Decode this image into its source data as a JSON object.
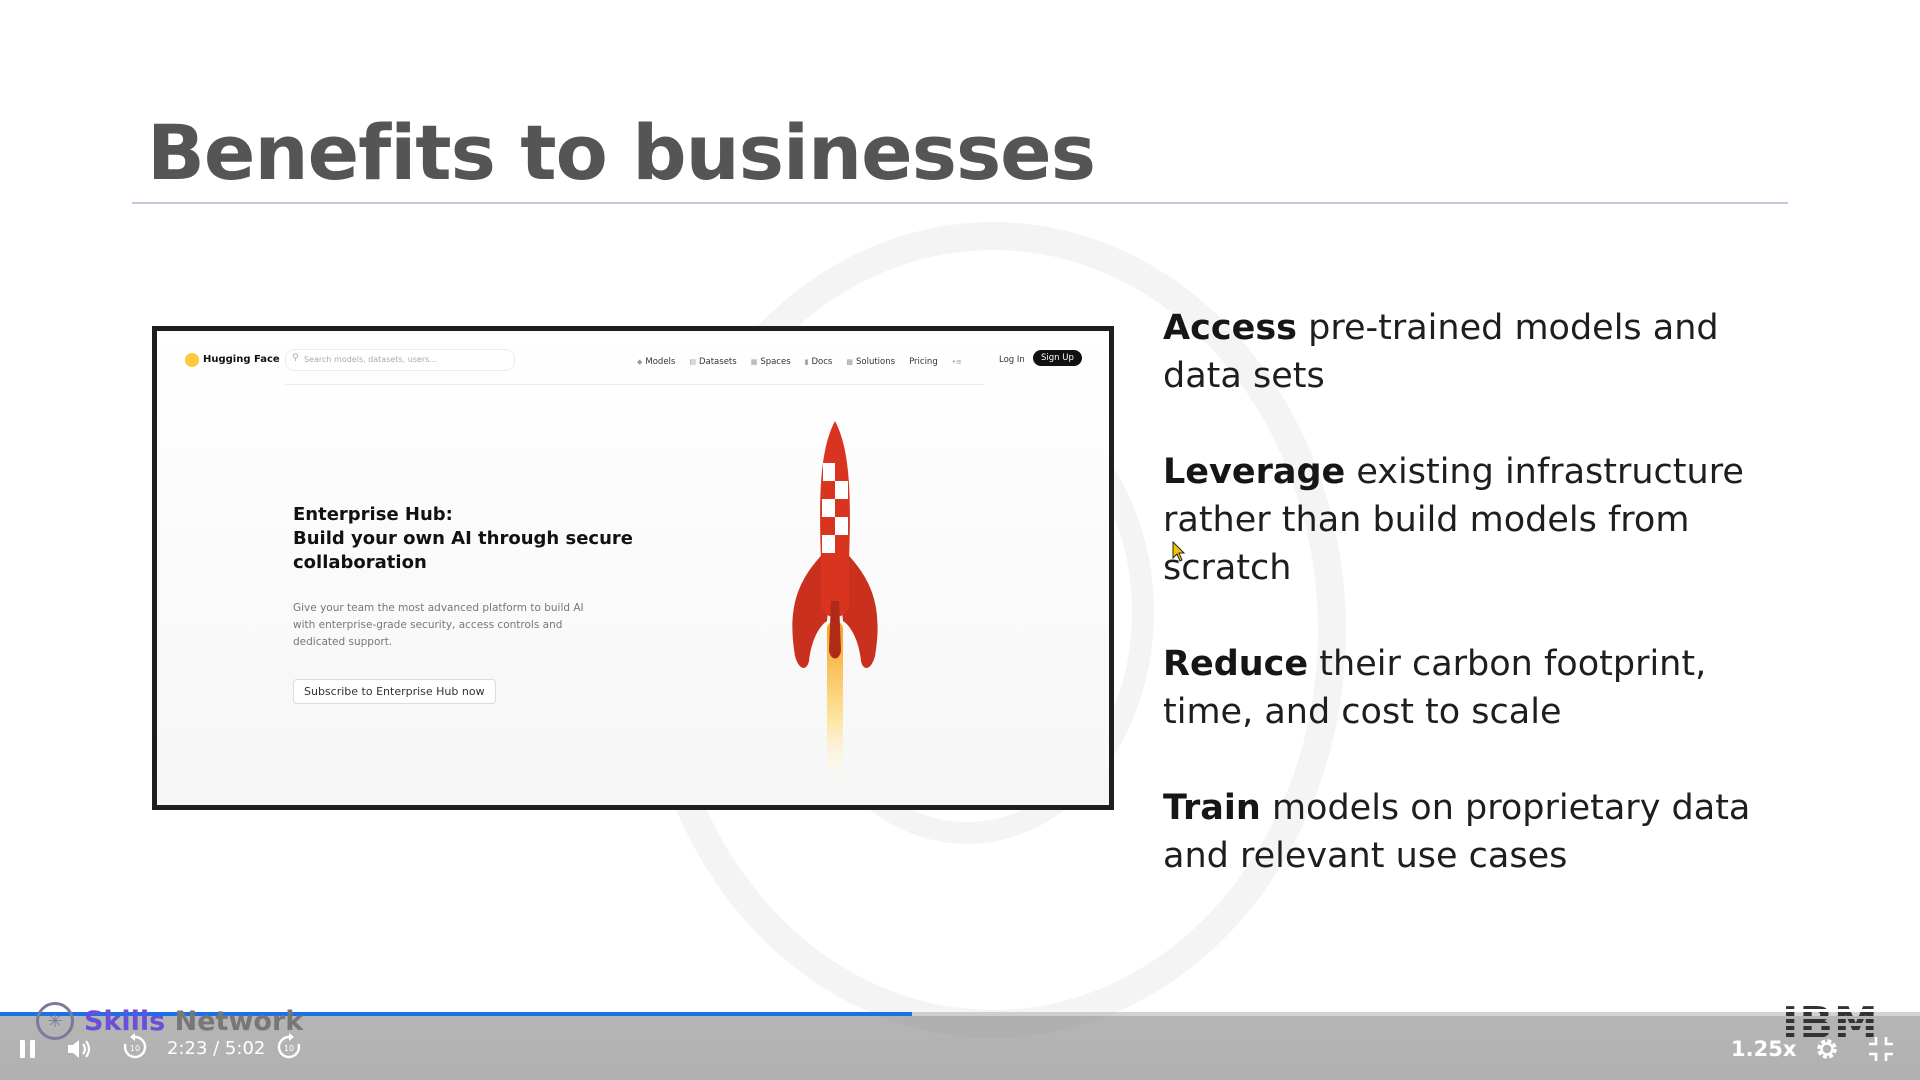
{
  "slide": {
    "title": "Benefits to businesses",
    "bullets": [
      {
        "bold": "Access",
        "rest": " pre-trained models and data sets"
      },
      {
        "bold": "Leverage",
        "rest": " existing infrastructure rather than build models from scratch"
      },
      {
        "bold": "Reduce",
        "rest": " their carbon footprint, time, and cost to scale"
      },
      {
        "bold": "Train",
        "rest": " models on proprietary data and relevant use cases"
      }
    ]
  },
  "screenshot": {
    "brand": "Hugging Face",
    "search_placeholder": "Search models, datasets, users...",
    "nav": [
      "Models",
      "Datasets",
      "Spaces",
      "Docs",
      "Solutions",
      "Pricing"
    ],
    "login": "Log In",
    "signup": "Sign Up",
    "hero_title_1": "Enterprise Hub:",
    "hero_title_2": "Build your own AI through secure collaboration",
    "hero_desc": "Give your team the most advanced platform to build AI with enterprise-grade security, access controls and dedicated support.",
    "hero_button": "Subscribe to Enterprise Hub now"
  },
  "branding": {
    "skills_1": "Skills",
    "skills_2": " Network",
    "ibm": "IBM"
  },
  "player": {
    "time": "2:23 / 5:02",
    "speed": "1.25x",
    "progress": 0.475,
    "skip_seconds": "10",
    "accent": "#1c70e6"
  }
}
